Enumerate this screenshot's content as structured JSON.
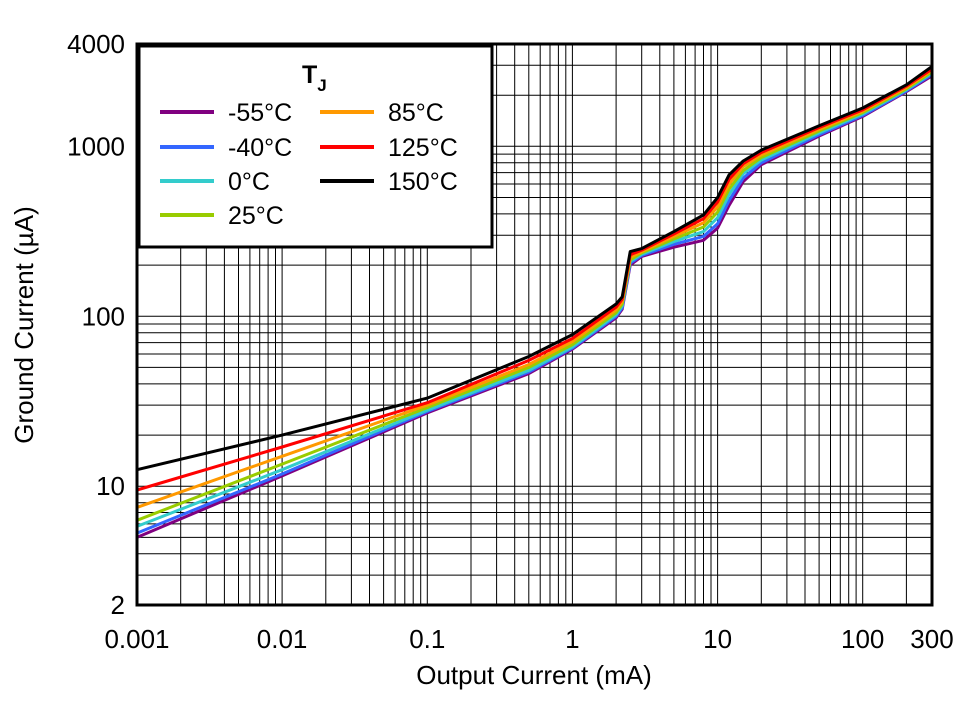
{
  "chart_data": {
    "type": "line",
    "xlabel": "Output Current (mA)",
    "ylabel": "Ground Current (µA)",
    "xscale": "log",
    "yscale": "log",
    "xlim": [
      0.001,
      300
    ],
    "ylim": [
      2,
      4000
    ],
    "xticks": [
      "0.001",
      "0.01",
      "0.1",
      "1",
      "10",
      "100",
      "300"
    ],
    "yticks": [
      "2",
      "10",
      "100",
      "1000",
      "4000"
    ],
    "xtick_values": [
      0.001,
      0.01,
      0.1,
      1,
      10,
      100,
      300
    ],
    "ytick_values": [
      2,
      10,
      100,
      1000,
      4000
    ],
    "grid": true,
    "legend_title_main": "T",
    "legend_title_sub": "J",
    "legend_position": "top-left",
    "series": [
      {
        "name": "-55°C",
        "color": "#800080",
        "x": [
          0.001,
          0.01,
          0.1,
          0.5,
          1,
          2,
          2.2,
          2.5,
          3,
          5,
          8,
          10,
          12,
          15,
          20,
          50,
          100,
          200,
          300
        ],
        "y": [
          5.0,
          11.5,
          27,
          46,
          64,
          98,
          110,
          200,
          225,
          255,
          280,
          330,
          450,
          620,
          780,
          1150,
          1500,
          2100,
          2600
        ]
      },
      {
        "name": "-40°C",
        "color": "#3366FF",
        "x": [
          0.001,
          0.01,
          0.1,
          0.5,
          1,
          2,
          2.2,
          2.5,
          3,
          5,
          8,
          10,
          12,
          15,
          20,
          50,
          100,
          200,
          300
        ],
        "y": [
          5.3,
          11.8,
          27.5,
          47,
          65,
          100,
          112,
          205,
          228,
          265,
          295,
          350,
          480,
          650,
          800,
          1170,
          1520,
          2120,
          2650
        ]
      },
      {
        "name": "0°C",
        "color": "#33CCCC",
        "x": [
          0.001,
          0.01,
          0.1,
          0.5,
          1,
          2,
          2.2,
          2.5,
          3,
          5,
          8,
          10,
          12,
          15,
          20,
          50,
          100,
          200,
          300
        ],
        "y": [
          5.8,
          12.5,
          28,
          48,
          66,
          102,
          115,
          210,
          232,
          275,
          315,
          380,
          520,
          690,
          830,
          1200,
          1550,
          2150,
          2700
        ]
      },
      {
        "name": "25°C",
        "color": "#99CC00",
        "x": [
          0.001,
          0.01,
          0.1,
          0.5,
          1,
          2,
          2.2,
          2.5,
          3,
          5,
          8,
          10,
          12,
          15,
          20,
          50,
          100,
          200,
          300
        ],
        "y": [
          6.3,
          13.5,
          29,
          50,
          68,
          105,
          118,
          215,
          236,
          285,
          335,
          410,
          560,
          720,
          860,
          1230,
          1580,
          2180,
          2750
        ]
      },
      {
        "name": "85°C",
        "color": "#FF9900",
        "x": [
          0.001,
          0.01,
          0.1,
          0.5,
          1,
          2,
          2.2,
          2.5,
          3,
          5,
          8,
          10,
          12,
          15,
          20,
          50,
          100,
          200,
          300
        ],
        "y": [
          7.5,
          15,
          30,
          52,
          71,
          109,
          122,
          222,
          240,
          295,
          355,
          440,
          600,
          760,
          890,
          1260,
          1610,
          2220,
          2800
        ]
      },
      {
        "name": "125°C",
        "color": "#FF0000",
        "x": [
          0.001,
          0.01,
          0.1,
          0.5,
          1,
          2,
          2.2,
          2.5,
          3,
          5,
          8,
          10,
          12,
          15,
          20,
          50,
          100,
          200,
          300
        ],
        "y": [
          9.5,
          17,
          31,
          55,
          74,
          113,
          126,
          230,
          245,
          305,
          375,
          470,
          640,
          790,
          920,
          1290,
          1640,
          2260,
          2850
        ]
      },
      {
        "name": "150°C",
        "color": "#000000",
        "x": [
          0.001,
          0.01,
          0.1,
          0.5,
          1,
          2,
          2.2,
          2.5,
          3,
          5,
          8,
          10,
          12,
          15,
          20,
          50,
          100,
          200,
          300
        ],
        "y": [
          12.5,
          20,
          33,
          58,
          78,
          118,
          130,
          240,
          250,
          315,
          395,
          500,
          680,
          820,
          950,
          1320,
          1680,
          2300,
          2950
        ]
      }
    ]
  }
}
